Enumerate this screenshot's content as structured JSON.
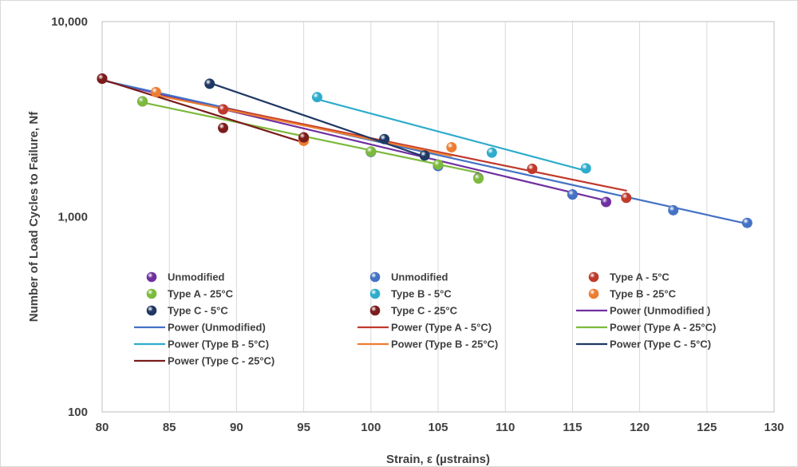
{
  "chart_data": {
    "type": "scatter",
    "title": "",
    "xlabel": "Strain, ε (µstrains)",
    "ylabel": "Number of Load Cycles to Failure, Nf",
    "xlim": [
      80,
      130
    ],
    "ylim": [
      100,
      10000
    ],
    "yscale": "log",
    "grid": {
      "x": true,
      "y": false
    },
    "legend": {
      "position": "inside-bottom-left",
      "columns": 3
    },
    "x_ticks": [
      "80",
      "85",
      "90",
      "95",
      "100",
      "105",
      "110",
      "115",
      "120",
      "125",
      "130"
    ],
    "y_ticks": [
      "100",
      "1,000",
      "10,000"
    ],
    "series": [
      {
        "name": "Unmodified",
        "color": "#7030a0",
        "x": [
          80,
          83,
          89,
          95,
          100,
          105,
          108,
          115,
          117.5
        ],
        "y": [
          5100,
          3900,
          3550,
          2500,
          2150,
          1820,
          1580,
          1300,
          1190
        ],
        "fit_name": "Power (Unmodified )",
        "fit_range": [
          80,
          117.5
        ]
      },
      {
        "name": "Unmodified",
        "color": "#4472c4",
        "x": [
          100,
          105,
          115,
          122.5,
          128
        ],
        "y": [
          2150,
          1820,
          1300,
          1080,
          930
        ],
        "fit_name": "Power (Unmodified)",
        "fit_range": [
          80,
          128
        ]
      },
      {
        "name": "Type A - 5°C",
        "color": "#c0392b",
        "x": [
          80,
          89,
          95,
          112,
          119
        ],
        "y": [
          5100,
          3550,
          2550,
          1760,
          1250
        ],
        "fit_name": "Power (Type A - 5°C)",
        "fit_range": [
          80,
          119
        ]
      },
      {
        "name": "Type A - 25°C",
        "color": "#7cba3c",
        "x": [
          83,
          95,
          100,
          105,
          108
        ],
        "y": [
          3900,
          2480,
          2160,
          1850,
          1570
        ],
        "fit_name": "Power (Type A - 25°C)",
        "fit_range": [
          83,
          108
        ]
      },
      {
        "name": "Type B - 5°C",
        "color": "#2eaccb",
        "x": [
          96,
          109,
          116
        ],
        "y": [
          4100,
          2130,
          1770
        ],
        "fit_name": "Power (Type B - 5°C)",
        "fit_range": [
          96,
          116
        ]
      },
      {
        "name": "Type B - 25°C",
        "color": "#ed7d31",
        "x": [
          84,
          95,
          106
        ],
        "y": [
          4350,
          2450,
          2270
        ],
        "fit_name": "Power (Type B - 25°C)",
        "fit_range": [
          84,
          106
        ]
      },
      {
        "name": "Type C - 5°C",
        "color": "#1f3864",
        "x": [
          88,
          101,
          104
        ],
        "y": [
          4800,
          2500,
          2060
        ],
        "fit_name": "Power (Type C - 5°C)",
        "fit_range": [
          88,
          104
        ]
      },
      {
        "name": "Type C - 25°C",
        "color": "#7b1c1c",
        "x": [
          80,
          89,
          95
        ],
        "y": [
          5100,
          2850,
          2550
        ],
        "fit_name": "Power (Type C - 25°C)",
        "fit_range": [
          80,
          95
        ]
      }
    ],
    "trendlines": [
      {
        "name": "Power (Unmodified )",
        "color": "#7030a0",
        "x": [
          80,
          117.5
        ],
        "y": [
          5000,
          1210
        ]
      },
      {
        "name": "Power (Unmodified)",
        "color": "#4472c4",
        "x": [
          80,
          128
        ],
        "y": [
          5000,
          920
        ]
      },
      {
        "name": "Power (Type A - 5°C)",
        "color": "#c0392b",
        "x": [
          89,
          119
        ],
        "y": [
          3620,
          1360
        ]
      },
      {
        "name": "Power (Type A - 25°C)",
        "color": "#7cba3c",
        "x": [
          83,
          108
        ],
        "y": [
          3850,
          1680
        ]
      },
      {
        "name": "Power (Type B - 5°C)",
        "color": "#2eaccb",
        "x": [
          96,
          116
        ],
        "y": [
          4000,
          1720
        ]
      },
      {
        "name": "Power (Type B - 25°C)",
        "color": "#ed7d31",
        "x": [
          84,
          106
        ],
        "y": [
          4200,
          2050
        ]
      },
      {
        "name": "Power (Type C - 5°C)",
        "color": "#1f3864",
        "x": [
          88,
          104
        ],
        "y": [
          4850,
          2030
        ]
      },
      {
        "name": "Power (Type C - 25°C)",
        "color": "#7b1c1c",
        "x": [
          80,
          95
        ],
        "y": [
          5050,
          2400
        ]
      }
    ],
    "legend_entries": [
      {
        "label": "Unmodified",
        "kind": "marker",
        "color": "#7030a0"
      },
      {
        "label": "Unmodified",
        "kind": "marker",
        "color": "#4472c4"
      },
      {
        "label": "Type A - 5°C",
        "kind": "marker",
        "color": "#c0392b"
      },
      {
        "label": "Type A - 25°C",
        "kind": "marker",
        "color": "#7cba3c"
      },
      {
        "label": "Type B - 5°C",
        "kind": "marker",
        "color": "#2eaccb"
      },
      {
        "label": "Type B - 25°C",
        "kind": "marker",
        "color": "#ed7d31"
      },
      {
        "label": "Type C - 5°C",
        "kind": "marker",
        "color": "#1f3864"
      },
      {
        "label": "Type C - 25°C",
        "kind": "marker",
        "color": "#7b1c1c"
      },
      {
        "label": "Power (Unmodified )",
        "kind": "line",
        "color": "#7030a0"
      },
      {
        "label": "Power (Unmodified)",
        "kind": "line",
        "color": "#4472c4"
      },
      {
        "label": "Power (Type A - 5°C)",
        "kind": "line",
        "color": "#c0392b"
      },
      {
        "label": "Power (Type A - 25°C)",
        "kind": "line",
        "color": "#7cba3c"
      },
      {
        "label": "Power (Type B - 5°C)",
        "kind": "line",
        "color": "#2eaccb"
      },
      {
        "label": "Power (Type B - 25°C)",
        "kind": "line",
        "color": "#ed7d31"
      },
      {
        "label": "Power (Type C - 5°C)",
        "kind": "line",
        "color": "#1f3864"
      },
      {
        "label": "Power (Type C - 25°C)",
        "kind": "line",
        "color": "#7b1c1c"
      }
    ]
  }
}
